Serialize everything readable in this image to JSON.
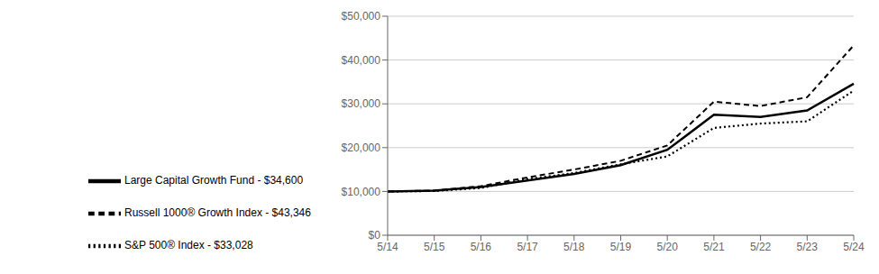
{
  "chart_data": {
    "type": "line",
    "categories": [
      "5/14",
      "5/15",
      "5/16",
      "5/17",
      "5/18",
      "5/19",
      "5/20",
      "5/21",
      "5/22",
      "5/23",
      "5/24"
    ],
    "series": [
      {
        "name": "Large Capital Growth Fund - $34,600",
        "color": "#000000",
        "line_style": "solid",
        "values": [
          10000,
          10200,
          11000,
          12500,
          14000,
          16000,
          19500,
          27500,
          27000,
          28500,
          34600
        ]
      },
      {
        "name": "S&P 500® Index - $33,028",
        "color": "#000000",
        "line_style": "dotted",
        "values": [
          10000,
          10100,
          10800,
          12800,
          14200,
          16200,
          18000,
          24500,
          25500,
          26000,
          33028
        ]
      },
      {
        "name": "Russell 1000® Growth Index - $43,346",
        "color": "#000000",
        "line_style": "dashed",
        "values": [
          10000,
          10200,
          11200,
          13200,
          15000,
          17000,
          20500,
          30500,
          29500,
          31500,
          43346
        ]
      }
    ],
    "ylim": [
      0,
      50000
    ],
    "yticks": [
      {
        "value": 0,
        "label": "$0"
      },
      {
        "value": 10000,
        "label": "$10,000"
      },
      {
        "value": 20000,
        "label": "$20,000"
      },
      {
        "value": 30000,
        "label": "$30,000"
      },
      {
        "value": 40000,
        "label": "$40,000"
      },
      {
        "value": 50000,
        "label": "$50,000"
      }
    ],
    "grid": true,
    "legend": "bottom"
  }
}
